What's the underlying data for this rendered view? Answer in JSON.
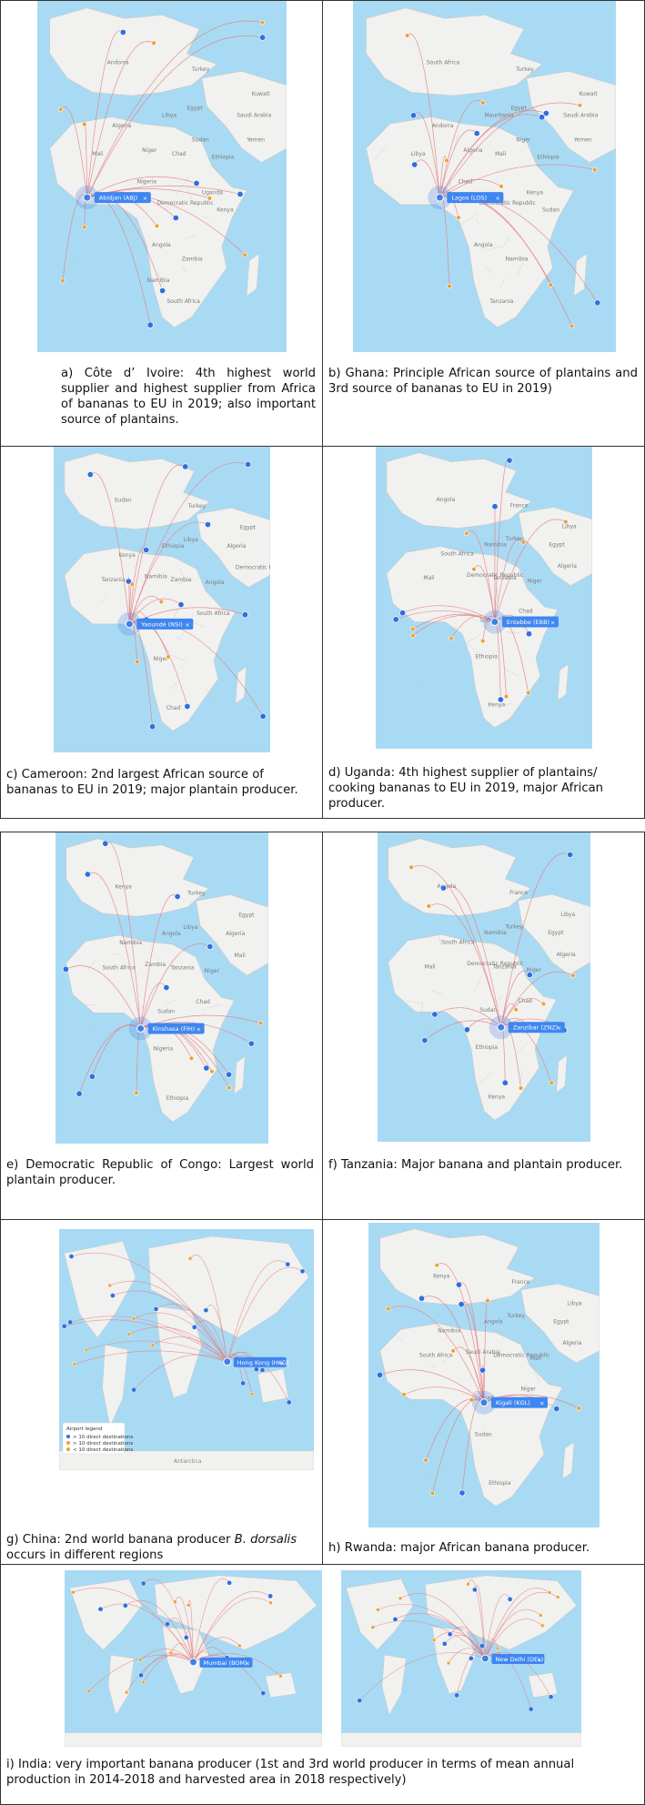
{
  "colors": {
    "sea": "#a9daf3",
    "land": "#f1f1ef",
    "border": "#c8c8c8",
    "route": "#e5777a",
    "major_destination": "#2f6fe0",
    "minor_destination": "#f0a030",
    "origin_marker": "#3f80e8",
    "pill": "#3f86f0"
  },
  "icons": {
    "pill_close": "×"
  },
  "panels": [
    {
      "id": "a",
      "airport_label": "Abidjan (ABJ)",
      "caption": "a) Côte d’ Ivoire: 4th highest world supplier and highest supplier from Africa of bananas to EU in 2019;  also important source of plantains.",
      "map_labels": [
        "Turkey",
        "Egypt",
        "Kuwait",
        "Saudi Arabia",
        "Yemen",
        "Ethiopia",
        "Uganda",
        "Democratic Republic of the Congo",
        "Angola",
        "South Africa",
        "Andorra",
        "Libya",
        "Algeria",
        "Mali",
        "Niger",
        "Chad",
        "Sudan",
        "Nigeria",
        "Kenya",
        "Zambia",
        "Namibia"
      ]
    },
    {
      "id": "b",
      "airport_label": "Lagos (LOS)",
      "caption": "b) Ghana: Principle African source of plantains and 3rd source of bananas to EU in 2019)",
      "map_labels": [
        "Turkey",
        "Egypt",
        "Kuwait",
        "Saudi Arabia",
        "Yemen",
        "Ethiopia",
        "Kenya",
        "Democratic Republic of the Congo",
        "Angola",
        "Tanzania",
        "South Africa",
        "Mauritania",
        "Andorra",
        "Libya",
        "Algeria",
        "Mali",
        "Niger",
        "Chad",
        "Sudan",
        "Namibia"
      ]
    },
    {
      "id": "c",
      "airport_label": "Yaoundé (NSI)",
      "caption": "c) Cameroon:  2nd largest African source of bananas to EU in 2019; major plantain producer.",
      "map_labels": [
        "Turkey",
        "Libya",
        "Egypt",
        "Algeria",
        "Democratic Republic of the Congo",
        "Angola",
        "South Africa",
        "Mali",
        "Niger",
        "Chad",
        "Sudan",
        "Ethiopia",
        "Kenya",
        "Tanzania",
        "Namibia",
        "Zambia"
      ]
    },
    {
      "id": "d",
      "airport_label": "Entebbe (EBB)",
      "caption": "d) Uganda: 4th highest supplier of plantains/ cooking bananas to EU in 2019, major African producer.",
      "map_labels": [
        "France",
        "Turkey",
        "Libya",
        "Egypt",
        "Algeria",
        "Niger",
        "Chad",
        "Sudan",
        "Ethiopia",
        "Kenya",
        "Angola",
        "Namibia",
        "South Africa",
        "Mali",
        "Democratic Republic of the Congo",
        "Tanzania"
      ]
    },
    {
      "id": "e",
      "airport_label": "Kinshasa (FIH)",
      "caption": "e) Democratic Republic of Congo: Largest world plantain producer.",
      "map_labels": [
        "Turkey",
        "Libya",
        "Egypt",
        "Algeria",
        "Mali",
        "Niger",
        "Chad",
        "Sudan",
        "Nigeria",
        "Ethiopia",
        "Kenya",
        "Angola",
        "Namibia",
        "South Africa",
        "Zambia",
        "Tanzania"
      ]
    },
    {
      "id": "f",
      "airport_label": "Zanzibar (ZNZ)",
      "caption": "f)  Tanzania:  Major  banana  and  plantain producer.",
      "map_labels": [
        "France",
        "Turkey",
        "Libya",
        "Egypt",
        "Algeria",
        "Niger",
        "Chad",
        "Sudan",
        "Ethiopia",
        "Kenya",
        "Angola",
        "Namibia",
        "South Africa",
        "Mali",
        "Democratic Republic of the Congo",
        "Tanzania"
      ]
    },
    {
      "id": "g",
      "airport_label": "Hong Kong (HKG)",
      "caption_prefix": "g) China: 2nd world banana producer ",
      "caption_italic": "B. dorsalis",
      "caption_suffix": " occurs in different regions",
      "legend_title": "Airport legend",
      "legend_items": [
        "> 10 direct destinations",
        "> 10 direct destinations",
        "< 10 direct destinations"
      ],
      "map_labels": [
        "Antarctica"
      ]
    },
    {
      "id": "h",
      "airport_label": "Kigali (KGL)",
      "caption": "h) Rwanda: major African banana producer.",
      "map_labels": [
        "France",
        "Turkey",
        "Libya",
        "Egypt",
        "Algeria",
        "Mali",
        "Niger",
        "Chad",
        "Sudan",
        "Ethiopia",
        "Kenya",
        "Angola",
        "Namibia",
        "South Africa",
        "Saudi Arabia",
        "Democratic Republic of the Congo"
      ]
    },
    {
      "id": "i",
      "airport_labels": [
        "Mumbai (BOM)",
        "New Delhi (DEL)"
      ],
      "caption": "i) India: very important banana producer (1st and 3rd world producer in terms of mean annual production in 2014-2018 and harvested area in 2018 respectively)"
    }
  ]
}
